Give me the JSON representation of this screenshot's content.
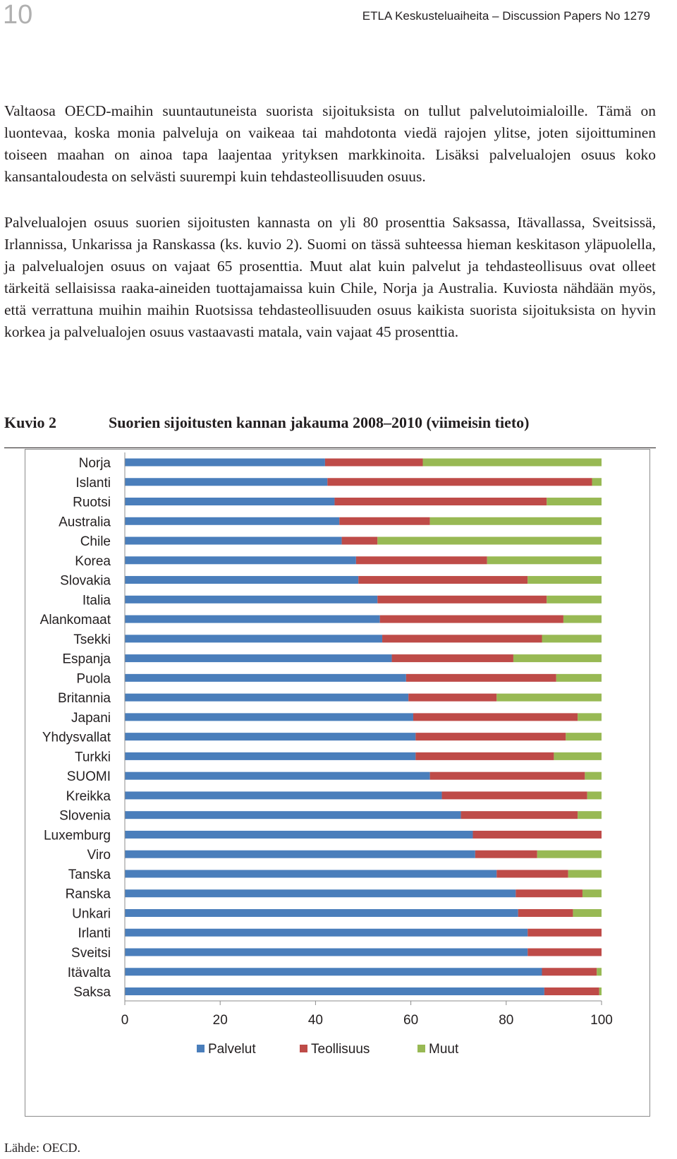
{
  "header": {
    "page_number": "10",
    "running_title": "ETLA Keskusteluaiheita – Discussion Papers No 1279"
  },
  "body": {
    "paragraph_1": "Valtaosa OECD-maihin suuntautuneista suorista sijoituksista on tullut palvelutoimialoille. Tämä on luontevaa, koska monia palveluja on vaikeaa tai mahdotonta viedä rajojen ylitse, joten sijoittuminen toiseen maahan on ainoa tapa laajentaa yrityksen markkinoita. Lisäksi palvelualojen osuus koko kansantaloudesta on selvästi suurempi kuin tehdasteollisuuden osuus.",
    "paragraph_2": "Palvelualojen osuus suorien sijoitusten kannasta on yli 80 prosenttia Saksassa, Itävallassa, Sveitsissä, Irlannissa, Unkarissa ja Ranskassa (ks. kuvio 2). Suomi on tässä suhteessa hieman keskitason yläpuolella, ja palvelualojen osuus on vajaat 65 prosenttia. Muut alat kuin palvelut ja tehdasteollisuus ovat olleet tärkeitä sellaisissa raaka-aineiden tuottajamaissa kuin Chile, Norja ja Australia. Kuviosta nähdään myös, että verrattuna muihin maihin Ruotsissa tehdasteollisuuden osuus kaikista suorista sijoituksista on hyvin korkea ja palvelualojen osuus vastaavasti matala, vain vajaat 45 prosenttia."
  },
  "figure": {
    "label": "Kuvio 2",
    "title": "Suorien sijoitusten kannan jakauma 2008–2010 (viimeisin tieto)",
    "source": "Lähde: OECD."
  },
  "colors": {
    "Palvelut": "#4a7ebb",
    "Teollisuus": "#be4b48",
    "Muut": "#98b954"
  },
  "chart_data": {
    "type": "bar",
    "orientation": "horizontal",
    "stacked": true,
    "categories": [
      "Norja",
      "Islanti",
      "Ruotsi",
      "Australia",
      "Chile",
      "Korea",
      "Slovakia",
      "Italia",
      "Alankomaat",
      "Tsekki",
      "Espanja",
      "Puola",
      "Britannia",
      "Japani",
      "Yhdysvallat",
      "Turkki",
      "SUOMI",
      "Kreikka",
      "Slovenia",
      "Luxemburg",
      "Viro",
      "Tanska",
      "Ranska",
      "Unkari",
      "Irlanti",
      "Sveitsi",
      "Itävalta",
      "Saksa"
    ],
    "series": [
      {
        "name": "Palvelut",
        "values": [
          42,
          42.5,
          44,
          45,
          45.5,
          48.5,
          49,
          53,
          53.5,
          54,
          56,
          59,
          59.5,
          60.5,
          61,
          61,
          64,
          66.5,
          70.5,
          73,
          73.5,
          78,
          82,
          82.5,
          84.5,
          84.5,
          87.5,
          88
        ]
      },
      {
        "name": "Teollisuus",
        "values": [
          20.5,
          55.5,
          44.5,
          19,
          7.5,
          27.5,
          35.5,
          35.5,
          38.5,
          33.5,
          25.5,
          31.5,
          18.5,
          34.5,
          31.5,
          29,
          32.5,
          30.5,
          24.5,
          27,
          13,
          15,
          14,
          11.5,
          15.5,
          15.5,
          11.5,
          11.5
        ]
      },
      {
        "name": "Muut",
        "values": [
          37.5,
          2,
          11.5,
          36,
          47,
          24,
          15.5,
          11.5,
          8,
          12.5,
          18.5,
          9.5,
          22,
          5,
          7.5,
          10,
          3.5,
          3,
          5,
          0,
          13.5,
          7,
          4,
          6,
          0,
          0,
          1,
          0.5
        ]
      }
    ],
    "xlim": [
      0,
      100
    ],
    "xticks": [
      0,
      20,
      40,
      60,
      80,
      100
    ],
    "legend": [
      "Palvelut",
      "Teollisuus",
      "Muut"
    ],
    "legend_position": "bottom",
    "grid": false
  }
}
